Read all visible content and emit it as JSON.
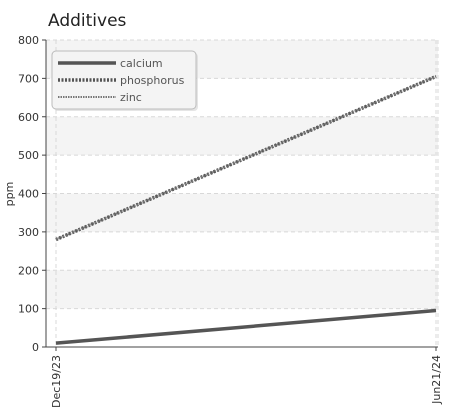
{
  "chart_data": {
    "type": "line",
    "title": "Additives",
    "xlabel": "",
    "ylabel": "ppm",
    "x": [
      "Dec19/23",
      "Jun21/24"
    ],
    "ylim": [
      0,
      800
    ],
    "yticks": [
      0,
      100,
      200,
      300,
      400,
      500,
      600,
      700,
      800
    ],
    "grid": true,
    "legend_position": "top-left",
    "series": [
      {
        "name": "calcium",
        "values": [
          10,
          95
        ],
        "color": "#555555",
        "style": "solid"
      },
      {
        "name": "phosphorus",
        "values": [
          280,
          705
        ],
        "color": "#555555",
        "style": "dotted"
      },
      {
        "name": "zinc",
        "values": [
          280,
          705
        ],
        "color": "#777777",
        "style": "dashed"
      }
    ]
  }
}
